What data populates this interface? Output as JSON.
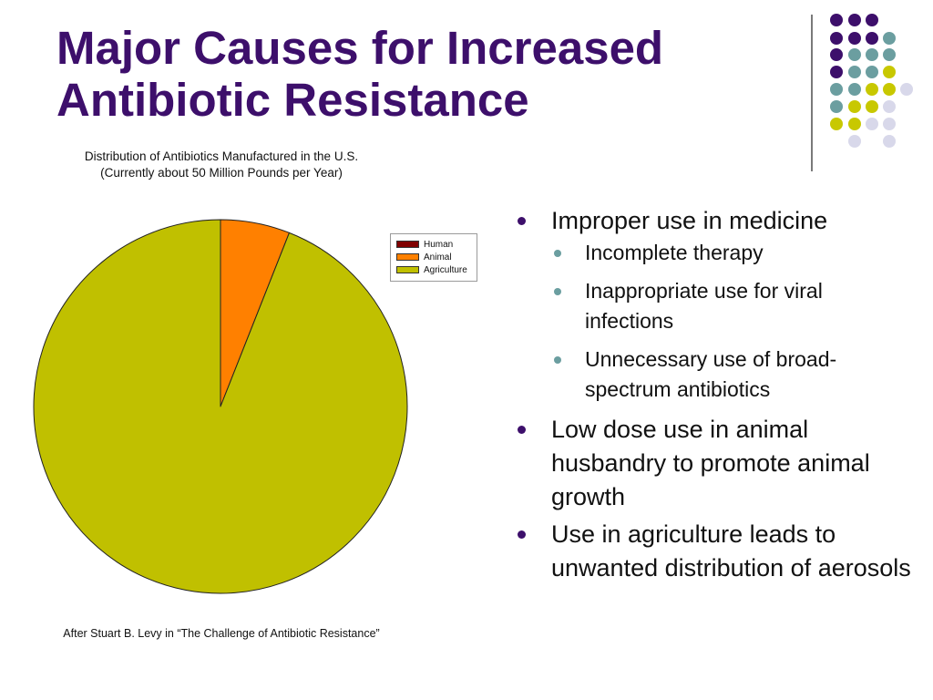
{
  "slide": {
    "title_lines": [
      "Major Causes for Increased",
      "Antibiotic Resistance"
    ]
  },
  "decor": {
    "dot_colors": {
      "purple": "#3d0f6b",
      "teal": "#6b9ea0",
      "olive": "#c8c800",
      "lavender": "#d8d8ea"
    }
  },
  "chart_data": {
    "type": "pie",
    "title_lines": [
      "Distribution of Antibiotics Manufactured in the U.S.",
      "(Currently about 50 Million Pounds per Year)"
    ],
    "series": [
      {
        "name": "Human",
        "value": 0,
        "color": "#800000"
      },
      {
        "name": "Animal",
        "value": 6,
        "color": "#ff8000"
      },
      {
        "name": "Agriculture",
        "value": 94,
        "color": "#c0c000"
      }
    ],
    "legend_position": "top-right",
    "source": "After Stuart B. Levy in “The Challenge of Antibiotic Resistance”"
  },
  "bullets": [
    {
      "text": "Improper use in medicine",
      "children": [
        "Incomplete therapy",
        "Inappropriate use for viral infections",
        "Unnecessary use of broad-spectrum antibiotics"
      ]
    },
    {
      "text": "Low dose use in animal husbandry to promote animal growth",
      "children": []
    },
    {
      "text": "Use in agriculture leads to unwanted distribution of aerosols",
      "children": []
    }
  ]
}
